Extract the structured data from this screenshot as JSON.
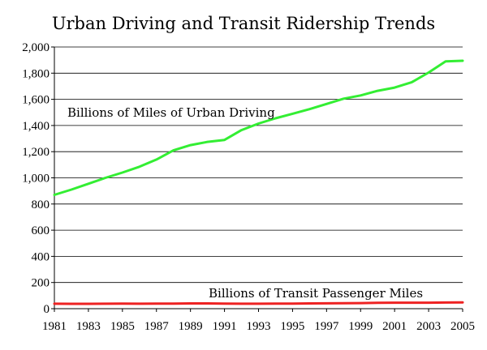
{
  "chart_data": {
    "type": "line",
    "title": "Urban Driving and Transit Ridership Trends",
    "xlabel": "",
    "ylabel": "",
    "x": [
      1981,
      1982,
      1983,
      1984,
      1985,
      1986,
      1987,
      1988,
      1989,
      1990,
      1991,
      1992,
      1993,
      1994,
      1995,
      1996,
      1997,
      1998,
      1999,
      2000,
      2001,
      2002,
      2003,
      2004,
      2005
    ],
    "x_tick_labels": [
      "1981",
      "1983",
      "1985",
      "1987",
      "1989",
      "1991",
      "1993",
      "1995",
      "1997",
      "1999",
      "2001",
      "2003",
      "2005"
    ],
    "xlim": [
      1981,
      2005
    ],
    "ylim": [
      0,
      2000
    ],
    "y_ticks": [
      0,
      200,
      400,
      600,
      800,
      1000,
      1200,
      1400,
      1600,
      1800,
      2000
    ],
    "y_tick_labels": [
      "0",
      "200",
      "400",
      "600",
      "800",
      "1,000",
      "1,200",
      "1,400",
      "1,600",
      "1,800",
      "2,000"
    ],
    "grid": "horizontal",
    "legend": "none",
    "series": [
      {
        "name": "Billions of Miles of Urban Driving",
        "color": "#33ee33",
        "values": [
          870,
          910,
          955,
          1000,
          1040,
          1085,
          1140,
          1210,
          1250,
          1275,
          1290,
          1365,
          1415,
          1455,
          1490,
          1525,
          1565,
          1605,
          1630,
          1665,
          1690,
          1730,
          1805,
          1890,
          1895
        ]
      },
      {
        "name": "Billions of Transit Passenger Miles",
        "color": "#ee2222",
        "values": [
          38,
          37,
          37,
          38,
          39,
          38,
          39,
          39,
          40,
          40,
          39,
          38,
          38,
          39,
          39,
          40,
          41,
          42,
          43,
          45,
          46,
          46,
          46,
          47,
          48
        ]
      }
    ]
  }
}
